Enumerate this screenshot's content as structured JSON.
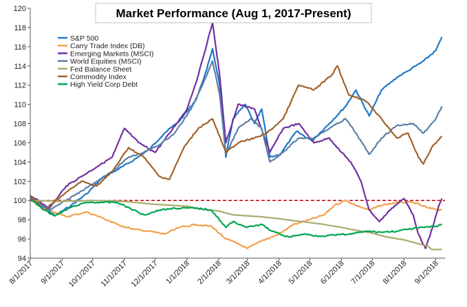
{
  "chart_data": {
    "type": "line",
    "title": "Market Performance (Aug 1, 2017-Present)",
    "xlabel": "",
    "ylabel": "",
    "xlim": [
      "2017-08-01",
      "2018-09-10"
    ],
    "ylim": [
      94,
      120
    ],
    "y_ticks": [
      94,
      96,
      98,
      100,
      102,
      104,
      106,
      108,
      110,
      112,
      114,
      116,
      118,
      120
    ],
    "x_ticks": [
      "2017-08-01",
      "2017-09-01",
      "2017-10-01",
      "2017-11-01",
      "2017-12-01",
      "2018-01-01",
      "2018-02-01",
      "2018-03-01",
      "2018-04-01",
      "2018-05-01",
      "2018-06-01",
      "2018-07-01",
      "2018-08-01",
      "2018-09-01"
    ],
    "x_tick_labels": [
      "8/1/2017",
      "9/1/2017",
      "10/1/2017",
      "11/1/2017",
      "12/1/2017",
      "1/1/2018",
      "2/1/2018",
      "3/1/2018",
      "4/1/2018",
      "5/1/2018",
      "6/1/2018",
      "7/1/2018",
      "8/1/2018",
      "9/1/2018"
    ],
    "reference_line": {
      "y": 100,
      "color": "#c00000",
      "style": "dashed"
    },
    "grid": false,
    "legend_position": "top-left",
    "series": [
      {
        "name": "S&P 500",
        "color": "#1f77c8",
        "points": [
          [
            "2017-08-01",
            100.2
          ],
          [
            "2017-08-15",
            99.3
          ],
          [
            "2017-08-25",
            98.4
          ],
          [
            "2017-09-10",
            99.5
          ],
          [
            "2017-09-25",
            100.7
          ],
          [
            "2017-10-10",
            102.3
          ],
          [
            "2017-10-25",
            103.2
          ],
          [
            "2017-11-10",
            104.2
          ],
          [
            "2017-11-25",
            105.3
          ],
          [
            "2017-12-10",
            107.0
          ],
          [
            "2017-12-25",
            108.3
          ],
          [
            "2018-01-10",
            110.5
          ],
          [
            "2018-01-20",
            113.5
          ],
          [
            "2018-01-26",
            115.8
          ],
          [
            "2018-02-02",
            112.0
          ],
          [
            "2018-02-08",
            104.5
          ],
          [
            "2018-02-15",
            108.5
          ],
          [
            "2018-02-27",
            110.0
          ],
          [
            "2018-03-08",
            108.0
          ],
          [
            "2018-03-15",
            109.5
          ],
          [
            "2018-03-23",
            104.5
          ],
          [
            "2018-04-02",
            104.8
          ],
          [
            "2018-04-18",
            107.2
          ],
          [
            "2018-05-03",
            106.2
          ],
          [
            "2018-05-20",
            108.0
          ],
          [
            "2018-06-05",
            109.8
          ],
          [
            "2018-06-15",
            111.5
          ],
          [
            "2018-06-28",
            108.8
          ],
          [
            "2018-07-10",
            111.5
          ],
          [
            "2018-07-25",
            112.8
          ],
          [
            "2018-08-05",
            113.5
          ],
          [
            "2018-08-20",
            114.5
          ],
          [
            "2018-09-01",
            115.6
          ],
          [
            "2018-09-07",
            117.0
          ]
        ]
      },
      {
        "name": "Carry Trade Index (DB)",
        "color": "#f2a04d",
        "points": [
          [
            "2017-08-01",
            100.5
          ],
          [
            "2017-08-20",
            99.0
          ],
          [
            "2017-09-05",
            98.3
          ],
          [
            "2017-09-25",
            98.8
          ],
          [
            "2017-10-10",
            98.2
          ],
          [
            "2017-10-25",
            97.5
          ],
          [
            "2017-11-10",
            97.0
          ],
          [
            "2017-11-25",
            96.8
          ],
          [
            "2017-12-10",
            96.5
          ],
          [
            "2017-12-25",
            97.2
          ],
          [
            "2018-01-10",
            97.5
          ],
          [
            "2018-01-25",
            97.3
          ],
          [
            "2018-02-08",
            96.0
          ],
          [
            "2018-02-20",
            95.5
          ],
          [
            "2018-03-01",
            95.0
          ],
          [
            "2018-03-15",
            95.8
          ],
          [
            "2018-04-01",
            96.5
          ],
          [
            "2018-04-15",
            97.5
          ],
          [
            "2018-05-01",
            98.0
          ],
          [
            "2018-05-15",
            98.5
          ],
          [
            "2018-05-25",
            99.5
          ],
          [
            "2018-06-05",
            100.0
          ],
          [
            "2018-06-15",
            99.5
          ],
          [
            "2018-06-28",
            99.0
          ],
          [
            "2018-07-10",
            99.5
          ],
          [
            "2018-07-25",
            99.8
          ],
          [
            "2018-08-10",
            99.8
          ],
          [
            "2018-08-25",
            99.2
          ],
          [
            "2018-09-07",
            99.0
          ]
        ]
      },
      {
        "name": "Emerging Markets (MSCI)",
        "color": "#7030a0",
        "points": [
          [
            "2017-08-01",
            100.5
          ],
          [
            "2017-08-20",
            99.2
          ],
          [
            "2017-09-05",
            101.5
          ],
          [
            "2017-09-20",
            102.5
          ],
          [
            "2017-10-05",
            103.5
          ],
          [
            "2017-10-20",
            104.5
          ],
          [
            "2017-11-01",
            107.5
          ],
          [
            "2017-11-15",
            106.0
          ],
          [
            "2017-12-01",
            105.0
          ],
          [
            "2017-12-15",
            107.0
          ],
          [
            "2018-01-01",
            109.5
          ],
          [
            "2018-01-12",
            113.0
          ],
          [
            "2018-01-26",
            118.5
          ],
          [
            "2018-02-02",
            113.0
          ],
          [
            "2018-02-08",
            106.0
          ],
          [
            "2018-02-20",
            110.0
          ],
          [
            "2018-03-08",
            109.5
          ],
          [
            "2018-03-23",
            105.0
          ],
          [
            "2018-04-05",
            107.5
          ],
          [
            "2018-04-20",
            108.0
          ],
          [
            "2018-05-05",
            106.0
          ],
          [
            "2018-05-20",
            106.5
          ],
          [
            "2018-06-01",
            105.0
          ],
          [
            "2018-06-10",
            104.0
          ],
          [
            "2018-06-20",
            102.0
          ],
          [
            "2018-06-28",
            99.0
          ],
          [
            "2018-07-08",
            97.8
          ],
          [
            "2018-07-20",
            99.2
          ],
          [
            "2018-08-01",
            100.2
          ],
          [
            "2018-08-10",
            98.5
          ],
          [
            "2018-08-15",
            96.5
          ],
          [
            "2018-08-22",
            95.0
          ],
          [
            "2018-08-29",
            97.2
          ],
          [
            "2018-09-04",
            99.5
          ],
          [
            "2018-09-07",
            100.2
          ]
        ]
      },
      {
        "name": "World Equities (MSCI)",
        "color": "#5b7fa6",
        "points": [
          [
            "2017-08-01",
            100.3
          ],
          [
            "2017-08-20",
            99.0
          ],
          [
            "2017-09-05",
            100.0
          ],
          [
            "2017-09-20",
            101.0
          ],
          [
            "2017-10-05",
            102.0
          ],
          [
            "2017-10-20",
            103.0
          ],
          [
            "2017-11-05",
            104.5
          ],
          [
            "2017-11-20",
            105.0
          ],
          [
            "2017-12-05",
            105.8
          ],
          [
            "2017-12-20",
            107.0
          ],
          [
            "2018-01-05",
            109.5
          ],
          [
            "2018-01-18",
            112.5
          ],
          [
            "2018-01-26",
            114.5
          ],
          [
            "2018-02-02",
            111.0
          ],
          [
            "2018-02-08",
            104.8
          ],
          [
            "2018-02-20",
            107.5
          ],
          [
            "2018-03-05",
            108.5
          ],
          [
            "2018-03-15",
            107.5
          ],
          [
            "2018-03-23",
            104.0
          ],
          [
            "2018-04-05",
            105.0
          ],
          [
            "2018-04-20",
            106.5
          ],
          [
            "2018-05-05",
            106.5
          ],
          [
            "2018-05-20",
            107.5
          ],
          [
            "2018-06-05",
            108.5
          ],
          [
            "2018-06-15",
            107.0
          ],
          [
            "2018-06-28",
            104.8
          ],
          [
            "2018-07-10",
            106.5
          ],
          [
            "2018-07-25",
            107.8
          ],
          [
            "2018-08-10",
            108.0
          ],
          [
            "2018-08-20",
            107.0
          ],
          [
            "2018-09-01",
            108.5
          ],
          [
            "2018-09-07",
            109.8
          ]
        ]
      },
      {
        "name": "Fed Balance Sheet",
        "color": "#a8ab6b",
        "points": [
          [
            "2017-08-01",
            100.0
          ],
          [
            "2017-09-01",
            99.9
          ],
          [
            "2017-10-01",
            100.0
          ],
          [
            "2017-11-01",
            99.9
          ],
          [
            "2017-12-01",
            99.6
          ],
          [
            "2018-01-01",
            99.4
          ],
          [
            "2018-01-15",
            99.1
          ],
          [
            "2018-02-01",
            98.9
          ],
          [
            "2018-02-15",
            98.5
          ],
          [
            "2018-03-01",
            98.4
          ],
          [
            "2018-03-15",
            98.3
          ],
          [
            "2018-04-01",
            98.1
          ],
          [
            "2018-04-15",
            97.9
          ],
          [
            "2018-05-01",
            97.7
          ],
          [
            "2018-05-15",
            97.5
          ],
          [
            "2018-06-01",
            97.2
          ],
          [
            "2018-06-15",
            96.9
          ],
          [
            "2018-07-01",
            96.6
          ],
          [
            "2018-07-15",
            96.2
          ],
          [
            "2018-08-01",
            95.9
          ],
          [
            "2018-08-15",
            95.5
          ],
          [
            "2018-08-25",
            95.2
          ],
          [
            "2018-08-28",
            94.9
          ],
          [
            "2018-09-07",
            94.9
          ]
        ]
      },
      {
        "name": "Commodity Index",
        "color": "#a0622a",
        "points": [
          [
            "2017-08-01",
            100.4
          ],
          [
            "2017-08-15",
            99.0
          ],
          [
            "2017-09-01",
            100.5
          ],
          [
            "2017-09-20",
            102.0
          ],
          [
            "2017-10-05",
            101.5
          ],
          [
            "2017-10-20",
            103.0
          ],
          [
            "2017-11-05",
            105.5
          ],
          [
            "2017-11-20",
            104.5
          ],
          [
            "2017-12-05",
            102.5
          ],
          [
            "2017-12-15",
            102.2
          ],
          [
            "2017-12-29",
            105.5
          ],
          [
            "2018-01-12",
            107.5
          ],
          [
            "2018-01-26",
            108.5
          ],
          [
            "2018-02-08",
            105.0
          ],
          [
            "2018-02-20",
            106.0
          ],
          [
            "2018-03-08",
            106.5
          ],
          [
            "2018-03-20",
            107.0
          ],
          [
            "2018-04-05",
            108.5
          ],
          [
            "2018-04-20",
            112.0
          ],
          [
            "2018-05-05",
            111.5
          ],
          [
            "2018-05-22",
            113.0
          ],
          [
            "2018-05-28",
            114.0
          ],
          [
            "2018-06-08",
            111.0
          ],
          [
            "2018-06-22",
            110.5
          ],
          [
            "2018-06-28",
            110.0
          ],
          [
            "2018-07-10",
            108.5
          ],
          [
            "2018-07-25",
            106.5
          ],
          [
            "2018-08-05",
            107.0
          ],
          [
            "2018-08-15",
            104.5
          ],
          [
            "2018-08-20",
            103.8
          ],
          [
            "2018-08-28",
            105.5
          ],
          [
            "2018-09-07",
            106.7
          ]
        ]
      },
      {
        "name": "High Yield Corp Debt",
        "color": "#00a651",
        "points": [
          [
            "2017-08-01",
            100.1
          ],
          [
            "2017-08-15",
            99.0
          ],
          [
            "2017-08-25",
            98.4
          ],
          [
            "2017-09-10",
            99.3
          ],
          [
            "2017-09-25",
            99.8
          ],
          [
            "2017-10-10",
            99.8
          ],
          [
            "2017-10-25",
            99.8
          ],
          [
            "2017-11-10",
            99.0
          ],
          [
            "2017-11-20",
            98.5
          ],
          [
            "2017-12-05",
            99.0
          ],
          [
            "2017-12-20",
            99.2
          ],
          [
            "2018-01-10",
            99.2
          ],
          [
            "2018-01-25",
            99.0
          ],
          [
            "2018-02-08",
            97.2
          ],
          [
            "2018-02-15",
            97.8
          ],
          [
            "2018-03-01",
            97.2
          ],
          [
            "2018-03-15",
            97.5
          ],
          [
            "2018-03-25",
            96.8
          ],
          [
            "2018-04-10",
            96.2
          ],
          [
            "2018-04-25",
            96.5
          ],
          [
            "2018-05-10",
            96.3
          ],
          [
            "2018-05-25",
            96.4
          ],
          [
            "2018-06-10",
            96.5
          ],
          [
            "2018-06-25",
            96.8
          ],
          [
            "2018-07-10",
            96.7
          ],
          [
            "2018-07-25",
            96.8
          ],
          [
            "2018-08-05",
            97.0
          ],
          [
            "2018-08-20",
            97.2
          ],
          [
            "2018-09-01",
            97.3
          ],
          [
            "2018-09-07",
            97.5
          ]
        ]
      }
    ]
  }
}
